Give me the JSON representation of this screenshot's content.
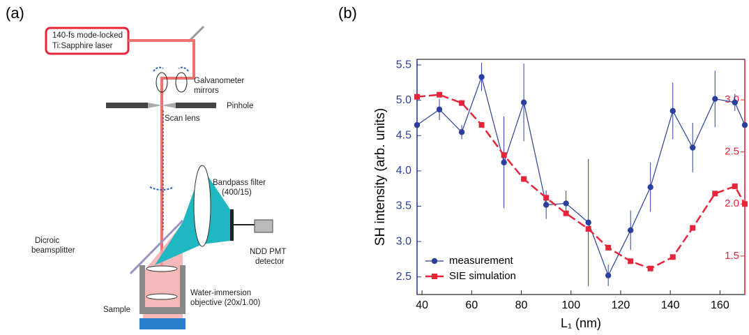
{
  "panel_labels": [
    "(a)",
    "(b)"
  ],
  "diagram": {
    "laser": [
      "140-fs mode-locked",
      "Ti:Sapphire laser"
    ],
    "galvo": [
      "Galvanometer",
      "mirrors"
    ],
    "pinhole": "Pinhole",
    "scan_lens": "Scan lens",
    "filter": [
      "Bandpass filter",
      "(400/15)"
    ],
    "dichroic": [
      "Dicroic",
      "beamsplitter"
    ],
    "detector": [
      "NDD PMT",
      "detector"
    ],
    "objective": [
      "Water-immersion",
      "objective (20x/1.00)"
    ],
    "sample": "Sample"
  },
  "chart_data": {
    "type": "line",
    "xlabel": "L₁ (nm)",
    "ylabel": "SH intensity (arb. units)",
    "x": [
      38,
      47,
      56,
      64,
      73,
      81,
      90,
      98,
      107,
      115,
      124,
      132,
      141,
      149,
      158,
      166,
      170
    ],
    "series": [
      {
        "name": "measurement",
        "color": "#2b3f9e",
        "marker": "circle",
        "values": [
          4.65,
          4.87,
          4.55,
          5.33,
          4.12,
          4.97,
          3.52,
          3.54,
          3.27,
          2.52,
          3.16,
          3.77,
          4.85,
          4.33,
          5.02,
          4.97,
          4.65
        ],
        "errors": [
          null,
          0.15,
          0.1,
          0.2,
          0.65,
          0.55,
          0.2,
          0.18,
          0.9,
          0.15,
          0.28,
          0.35,
          0.4,
          0.35,
          0.4,
          0.12,
          null
        ]
      },
      {
        "name": "SIE simulation",
        "color": "#e8243a",
        "marker": "square",
        "dashed": true,
        "axis": "y2",
        "values": [
          3.03,
          3.05,
          2.97,
          2.76,
          2.47,
          2.24,
          2.06,
          1.91,
          1.76,
          1.58,
          1.45,
          1.38,
          1.49,
          1.77,
          2.1,
          2.17,
          2.0
        ]
      }
    ],
    "xlim": [
      38,
      170
    ],
    "xticks": [
      40,
      60,
      80,
      100,
      120,
      140,
      160
    ],
    "ylim": [
      2.25,
      5.58
    ],
    "yticks": [
      2.5,
      {
        "value": 3,
        "label": "3.0"
      },
      3.5,
      {
        "value": 4,
        "label": "4.0"
      },
      4.5,
      {
        "value": 5,
        "label": "5.0"
      },
      5.5
    ],
    "y2lim": [
      1.13,
      3.39
    ],
    "y2ticks": [
      1.5,
      {
        "value": 2,
        "label": "2.0"
      },
      2.5,
      {
        "value": 3,
        "label": "3.0"
      }
    ],
    "legend": "lower left"
  }
}
